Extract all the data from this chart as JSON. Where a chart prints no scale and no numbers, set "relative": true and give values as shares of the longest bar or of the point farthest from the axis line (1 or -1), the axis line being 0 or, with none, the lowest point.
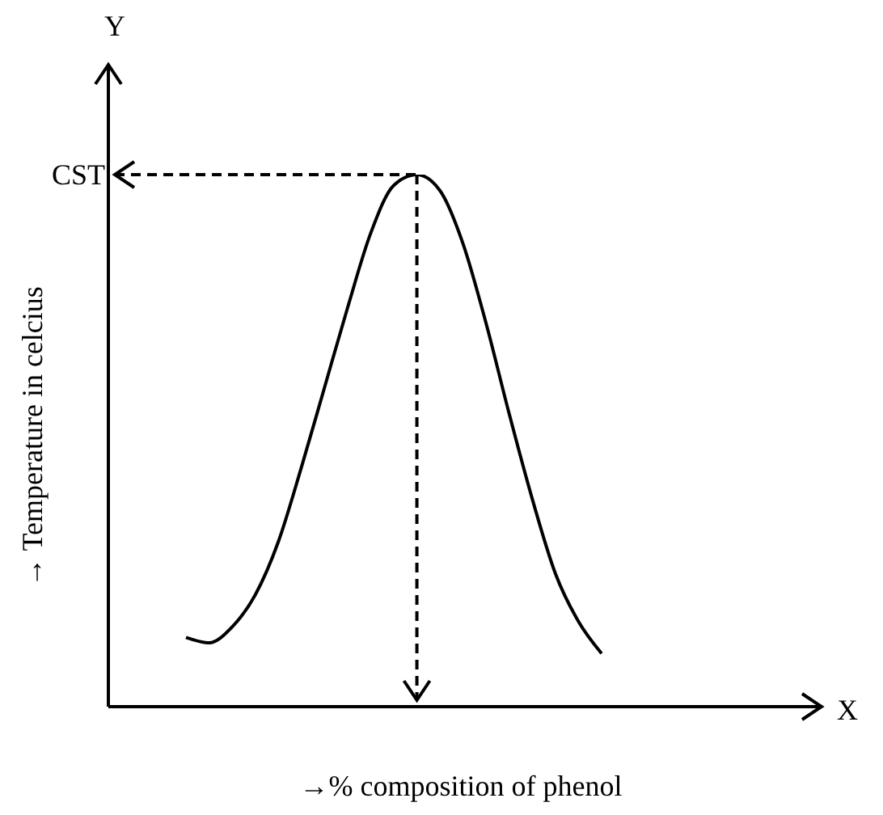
{
  "chart_data": {
    "type": "line",
    "relative": true,
    "xlabel": "→% composition of phenol",
    "ylabel": "→ Temperature in celcius",
    "annotations": [
      "Y",
      "X"
    ],
    "categories": [
      null,
      null,
      null,
      null,
      null,
      null,
      null,
      null,
      null,
      null,
      null,
      null,
      null,
      null,
      null,
      null,
      null,
      null,
      null
    ],
    "series": [
      {
        "color": "#000000",
        "values": [
          0.13,
          0.12,
          0.15,
          0.21,
          0.31,
          0.45,
          0.6,
          0.75,
          0.89,
          0.98,
          1,
          0.97,
          0.87,
          0.72,
          0.55,
          0.39,
          0.25,
          0.16,
          0.1
        ]
      }
    ],
    "ref_lines": [
      {
        "axis": "y",
        "value": 1,
        "label": "CST",
        "line_style": "dashed",
        "color": "#000000"
      }
    ],
    "marker": "none",
    "line_style": "solid",
    "tick_labels": false
  }
}
